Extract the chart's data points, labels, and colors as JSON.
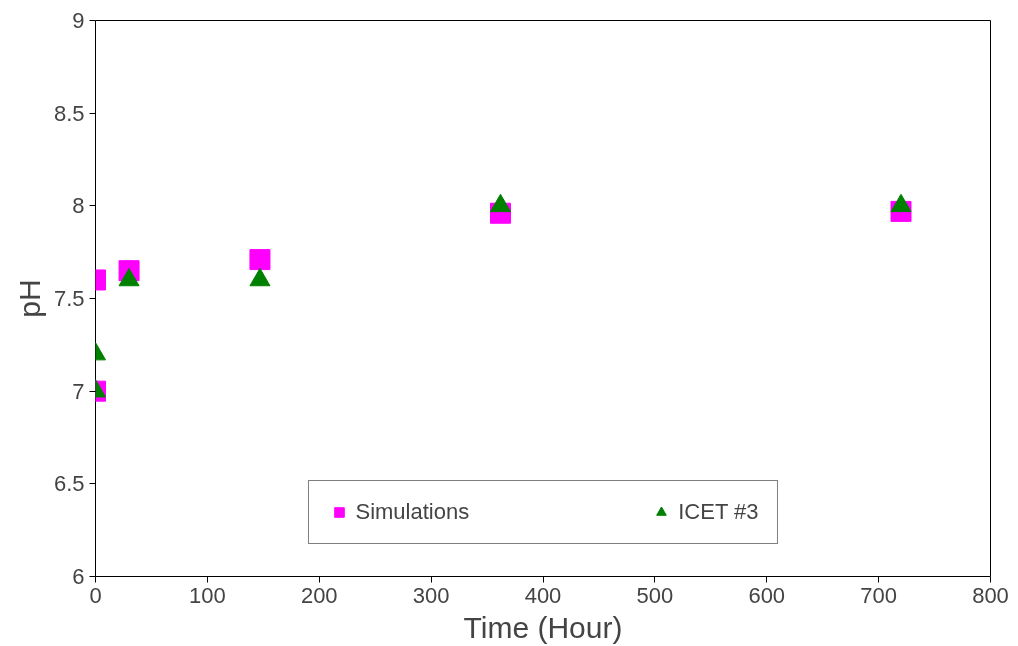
{
  "chart_data": {
    "type": "scatter",
    "xlabel": "Time (Hour)",
    "ylabel": "pH",
    "xlim": [
      0,
      800
    ],
    "ylim": [
      6,
      9
    ],
    "xticks": [
      0,
      100,
      200,
      300,
      400,
      500,
      600,
      700,
      800
    ],
    "yticks": [
      6,
      6.5,
      7,
      7.5,
      8,
      8.5,
      9
    ],
    "grid": false,
    "legend": "bottom",
    "series": [
      {
        "name": "Simulations",
        "color": "#ff00ff",
        "marker": "square",
        "x": [
          0,
          0,
          30,
          147,
          362,
          720
        ],
        "values": [
          7.0,
          7.6,
          7.65,
          7.71,
          7.96,
          7.97
        ]
      },
      {
        "name": "ICET #3",
        "color": "#008000",
        "marker": "triangle",
        "x": [
          0,
          0,
          30,
          147,
          362,
          720
        ],
        "values": [
          7.2,
          7.0,
          7.6,
          7.6,
          8.0,
          8.0
        ]
      }
    ]
  }
}
